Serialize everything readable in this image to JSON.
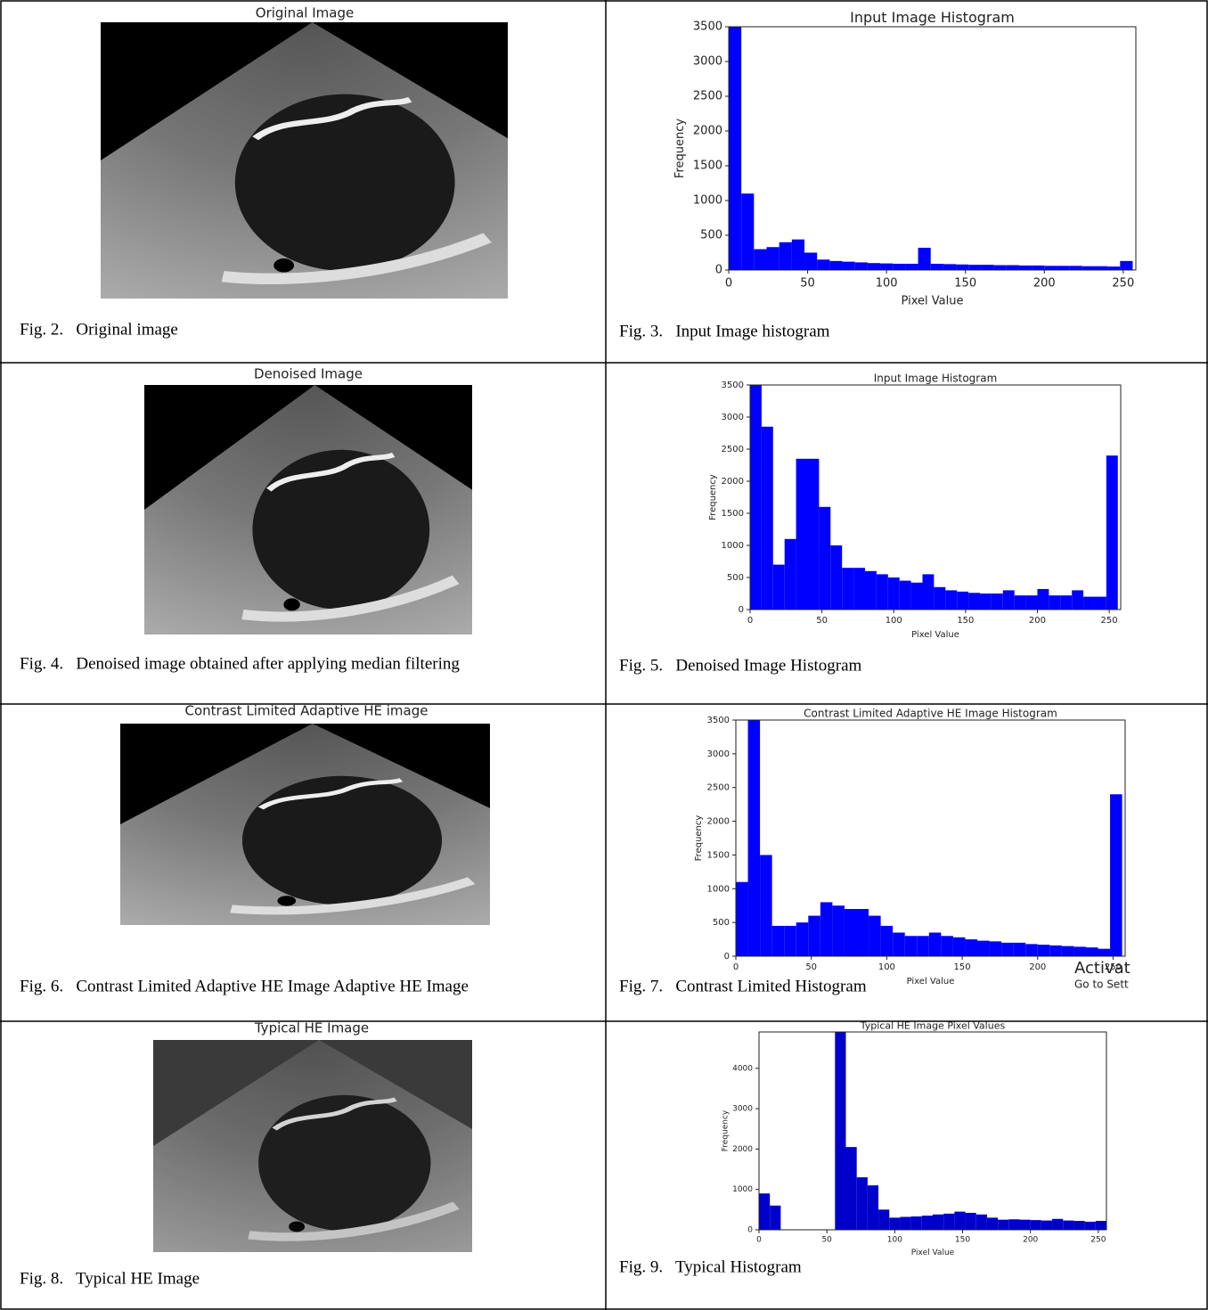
{
  "figures": [
    {
      "title": "Original Image",
      "caption": "Fig. 2.   Original image"
    },
    {
      "title": "Denoised Image",
      "caption": "Fig. 4.   Denoised image obtained after applying median filtering"
    },
    {
      "title": "Contrast Limited Adaptive HE image",
      "caption": "Fig. 6.   Contrast Limited Adaptive HE Image Adaptive HE Image"
    },
    {
      "title": "Typical HE Image",
      "caption": "Fig. 8.   Typical HE Image"
    }
  ],
  "histogram_captions": [
    "Fig. 3.   Input Image histogram",
    "Fig. 5.   Denoised Image Histogram",
    "Fig. 7.   Contrast Limited Histogram",
    "Fig. 9.   Typical Histogram"
  ],
  "chart_data": [
    {
      "type": "histogram",
      "title": "Input Image Histogram",
      "xlabel": "Pixel Value",
      "ylabel": "Frequency",
      "color": "#0000ff",
      "bins": [
        0,
        8,
        16,
        24,
        32,
        40,
        48,
        56,
        64,
        72,
        80,
        88,
        96,
        104,
        112,
        120,
        128,
        136,
        144,
        152,
        160,
        168,
        176,
        184,
        192,
        200,
        208,
        216,
        224,
        232,
        240,
        248,
        256
      ],
      "values": [
        3500,
        1100,
        300,
        330,
        400,
        440,
        250,
        150,
        130,
        120,
        110,
        100,
        95,
        90,
        90,
        320,
        90,
        85,
        80,
        75,
        75,
        70,
        70,
        65,
        65,
        60,
        60,
        60,
        55,
        55,
        50,
        130
      ],
      "xlim": [
        0,
        258
      ],
      "ylim": [
        0,
        3500
      ],
      "xticks": [
        0,
        50,
        100,
        150,
        200,
        250
      ],
      "yticks": [
        0,
        500,
        1000,
        1500,
        2000,
        2500,
        3000,
        3500
      ]
    },
    {
      "type": "histogram",
      "title": "Input Image Histogram",
      "xlabel": "Pixel Value",
      "ylabel": "Frequency",
      "color": "#0000ff",
      "bins": [
        0,
        8,
        16,
        24,
        32,
        40,
        48,
        56,
        64,
        72,
        80,
        88,
        96,
        104,
        112,
        120,
        128,
        136,
        144,
        152,
        160,
        168,
        176,
        184,
        192,
        200,
        208,
        216,
        224,
        232,
        240,
        248,
        256
      ],
      "values": [
        3500,
        2850,
        700,
        1100,
        2350,
        2350,
        1600,
        1000,
        650,
        650,
        600,
        550,
        500,
        450,
        420,
        550,
        350,
        300,
        280,
        260,
        250,
        250,
        300,
        220,
        220,
        320,
        220,
        220,
        300,
        200,
        200,
        2400
      ],
      "xlim": [
        0,
        258
      ],
      "ylim": [
        0,
        3500
      ],
      "xticks": [
        0,
        50,
        100,
        150,
        200,
        250
      ],
      "yticks": [
        0,
        500,
        1000,
        1500,
        2000,
        2500,
        3000,
        3500
      ]
    },
    {
      "type": "histogram",
      "title": "Contrast Limited Adaptive HE Image Histogram",
      "xlabel": "Pixel Value",
      "ylabel": "Frequency",
      "color": "#0000ff",
      "bins": [
        0,
        8,
        16,
        24,
        32,
        40,
        48,
        56,
        64,
        72,
        80,
        88,
        96,
        104,
        112,
        120,
        128,
        136,
        144,
        152,
        160,
        168,
        176,
        184,
        192,
        200,
        208,
        216,
        224,
        232,
        240,
        248,
        256
      ],
      "values": [
        1100,
        3500,
        1500,
        450,
        450,
        500,
        600,
        800,
        750,
        700,
        700,
        600,
        450,
        350,
        300,
        300,
        350,
        300,
        280,
        250,
        230,
        220,
        200,
        200,
        180,
        170,
        160,
        150,
        140,
        130,
        110,
        2400
      ],
      "xlim": [
        0,
        258
      ],
      "ylim": [
        0,
        3500
      ],
      "xticks": [
        0,
        50,
        100,
        150,
        200,
        250
      ],
      "yticks": [
        0,
        500,
        1000,
        1500,
        2000,
        2500,
        3000,
        3500
      ],
      "watermark": [
        "Activat",
        "Go to Sett"
      ]
    },
    {
      "type": "histogram",
      "title": "Typical HE Image Pixel Values",
      "xlabel": "Pixel Value",
      "ylabel": "Frequency",
      "color": "#0000cc",
      "bins": [
        0,
        8,
        16,
        24,
        32,
        40,
        48,
        56,
        64,
        72,
        80,
        88,
        96,
        104,
        112,
        120,
        128,
        136,
        144,
        152,
        160,
        168,
        176,
        184,
        192,
        200,
        208,
        216,
        224,
        232,
        240,
        248,
        256
      ],
      "values": [
        900,
        600,
        0,
        0,
        0,
        0,
        0,
        4900,
        2050,
        1300,
        1100,
        500,
        300,
        320,
        330,
        350,
        380,
        400,
        450,
        420,
        380,
        300,
        250,
        260,
        250,
        240,
        230,
        270,
        230,
        220,
        200,
        220
      ],
      "xlim": [
        0,
        256
      ],
      "ylim": [
        0,
        4900
      ],
      "xticks": [
        0,
        50,
        100,
        150,
        200,
        250
      ],
      "yticks": [
        0,
        1000,
        2000,
        3000,
        4000
      ]
    }
  ]
}
